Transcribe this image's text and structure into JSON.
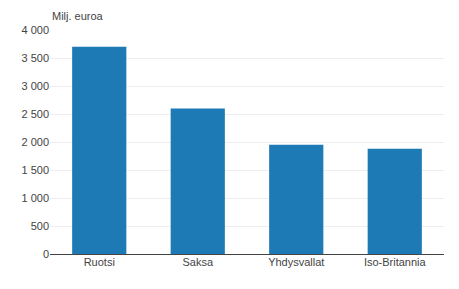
{
  "chart_data": {
    "type": "bar",
    "ylabel": "Milj. euroa",
    "categories": [
      "Ruotsi",
      "Saksa",
      "Yhdysvallat",
      "Iso-Britannia"
    ],
    "values": [
      3700,
      2600,
      1950,
      1880
    ],
    "color": "#1d7ab5",
    "ylim": [
      0,
      4000
    ],
    "yticks": [
      0,
      500,
      {
        "value": 1000,
        "label": "1 000"
      },
      {
        "value": 1500,
        "label": "1 500"
      },
      {
        "value": 2000,
        "label": "2 000"
      },
      {
        "value": 2500,
        "label": "2 500"
      },
      {
        "value": 3000,
        "label": "3 000"
      },
      {
        "value": 3500,
        "label": "3 500"
      },
      {
        "value": 4000,
        "label": "4 000"
      }
    ],
    "grid": true
  }
}
